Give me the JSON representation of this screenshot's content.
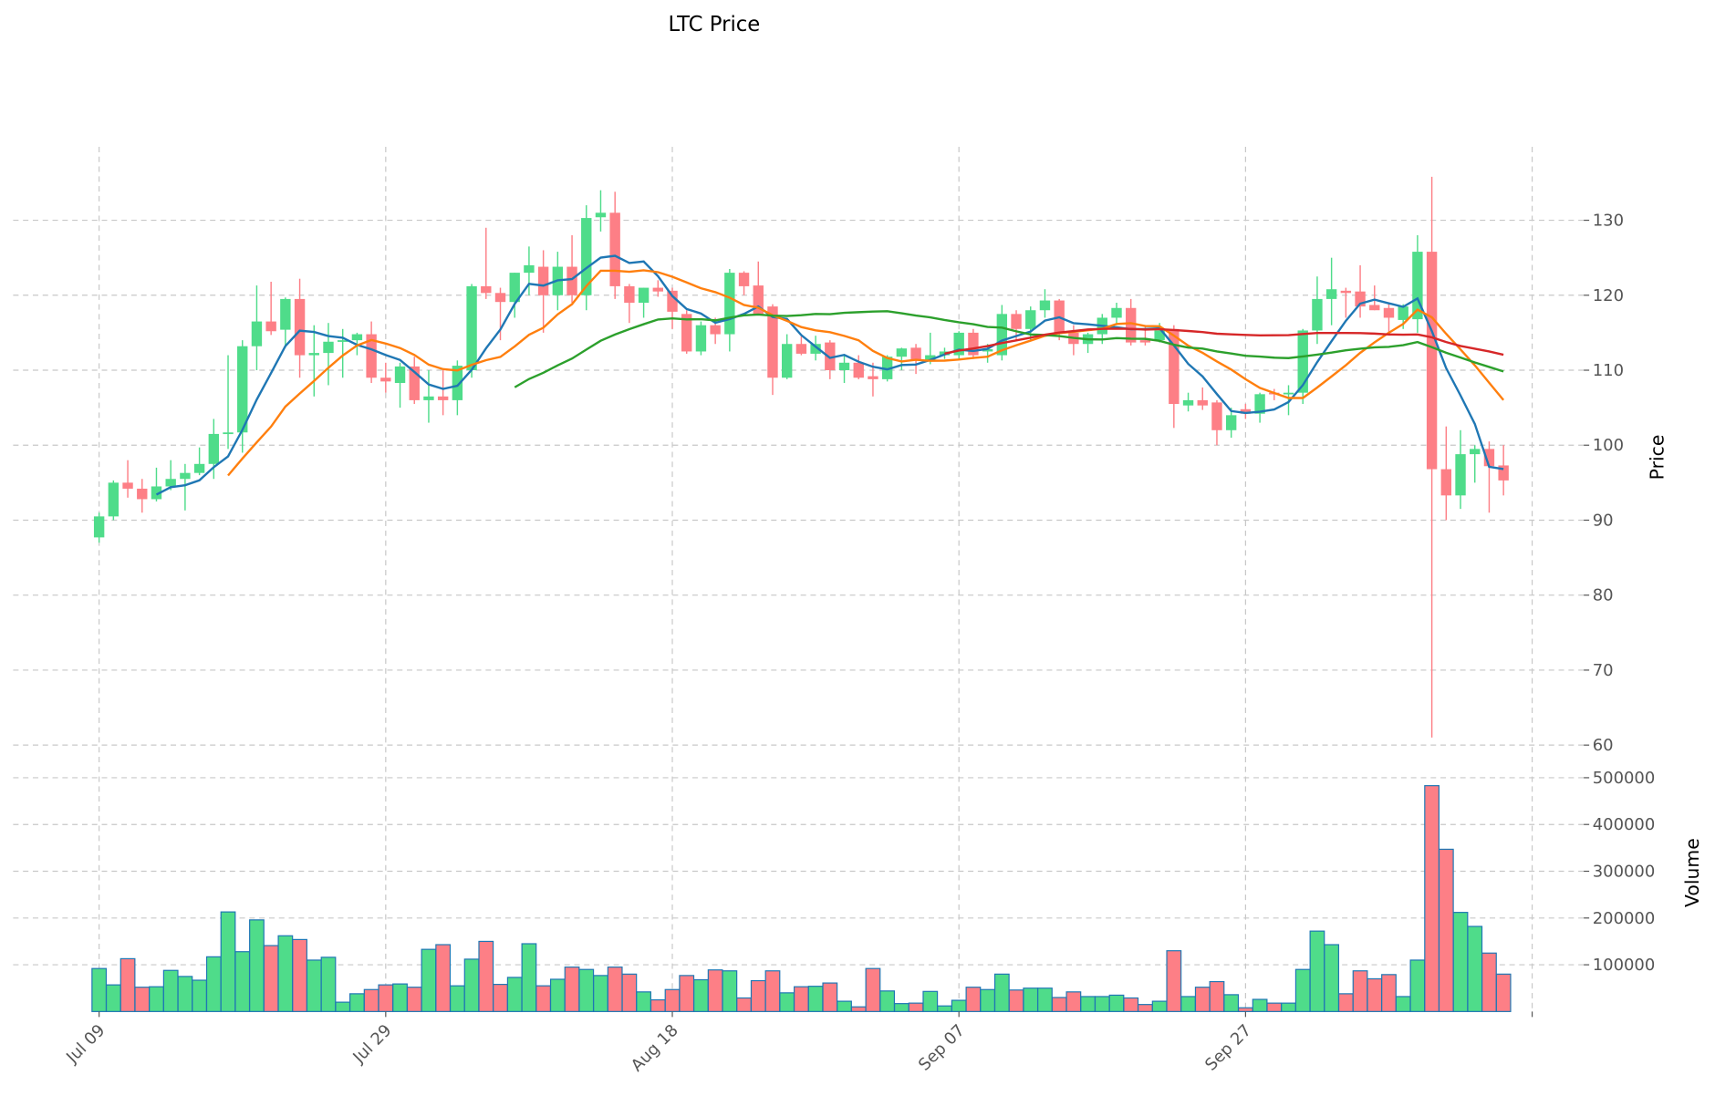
{
  "chart_data": {
    "type": "candlestick",
    "title": "LTC Price",
    "ylabel": "Price",
    "volume_label": "Volume",
    "ylim": [
      58,
      139.8
    ],
    "volume_ylim": [
      0,
      526000
    ],
    "grid": true,
    "price_ticks": [
      60,
      70,
      80,
      90,
      100,
      110,
      120,
      130
    ],
    "volume_ticks": [
      100000,
      200000,
      300000,
      400000,
      500000
    ],
    "x_ticks": [
      {
        "index": 0,
        "label": "Jul 09"
      },
      {
        "index": 20,
        "label": "Jul 29"
      },
      {
        "index": 40,
        "label": "Aug 18"
      },
      {
        "index": 60,
        "label": "Sep 07"
      },
      {
        "index": 80,
        "label": "Sep 27"
      },
      {
        "index": 100,
        "label": ""
      }
    ],
    "xlim": [
      -6,
      103.6
    ],
    "colors": {
      "up": "#4fdc8a",
      "down": "#fd7f86",
      "volume_edge": "#1f77b4"
    },
    "moving_averages": [
      {
        "period": 5,
        "color": "#1f77b4"
      },
      {
        "period": 10,
        "color": "#ff7f0e"
      },
      {
        "period": 30,
        "color": "#2ca02c"
      },
      {
        "period": 60,
        "color": "#d62728"
      }
    ],
    "ohlc": [
      [
        87.7,
        91,
        87,
        90.5
      ],
      [
        90.5,
        95.3,
        90,
        95
      ],
      [
        95,
        98,
        93,
        94.2
      ],
      [
        94.2,
        95.5,
        91,
        92.8
      ],
      [
        92.8,
        97,
        92.5,
        94.5
      ],
      [
        94.5,
        98,
        94,
        95.5
      ],
      [
        95.5,
        97.5,
        91.3,
        96.3
      ],
      [
        96.3,
        99.7,
        96,
        97.5
      ],
      [
        97.5,
        103.5,
        95.5,
        101.5
      ],
      [
        101.5,
        112,
        99.5,
        101.7
      ],
      [
        101.7,
        114,
        99,
        113.2
      ],
      [
        113.2,
        121.3,
        110,
        116.5
      ],
      [
        116.5,
        121.8,
        114.7,
        115.2
      ],
      [
        115.4,
        119.7,
        113,
        119.5
      ],
      [
        119.5,
        122.2,
        109,
        112
      ],
      [
        112,
        116,
        106.5,
        112.3
      ],
      [
        112.3,
        116.3,
        108,
        113.8
      ],
      [
        113.8,
        115.5,
        109,
        114
      ],
      [
        114,
        115,
        112,
        114.8
      ],
      [
        114.8,
        116.5,
        108.3,
        109
      ],
      [
        109,
        111,
        107,
        108.5
      ],
      [
        108.3,
        111,
        105,
        110.5
      ],
      [
        110.5,
        111.8,
        105.5,
        106
      ],
      [
        106,
        110,
        103,
        106.5
      ],
      [
        106.5,
        110,
        104,
        106
      ],
      [
        106,
        111.3,
        104,
        110.6
      ],
      [
        110,
        121.5,
        109,
        121.2
      ],
      [
        121.2,
        129,
        119.5,
        120.3
      ],
      [
        120.3,
        121,
        114,
        119.1
      ],
      [
        119.1,
        123,
        117,
        123
      ],
      [
        123,
        126.5,
        120,
        124
      ],
      [
        123.8,
        126,
        115,
        120
      ],
      [
        120,
        125.8,
        118,
        123.8
      ],
      [
        123.8,
        128,
        119,
        120
      ],
      [
        120,
        132,
        118,
        130.3
      ],
      [
        130.4,
        134,
        128.5,
        131
      ],
      [
        131,
        133.8,
        119.5,
        121.2
      ],
      [
        121.2,
        121.5,
        116.3,
        119
      ],
      [
        119,
        121,
        117,
        121
      ],
      [
        121,
        122,
        119.8,
        120.5
      ],
      [
        120.6,
        121,
        115.5,
        117.8
      ],
      [
        117.5,
        118,
        112.2,
        112.5
      ],
      [
        112.5,
        116.5,
        112,
        116
      ],
      [
        116,
        117,
        113.5,
        114.8
      ],
      [
        114.8,
        123.5,
        112.5,
        123
      ],
      [
        123,
        123.2,
        120,
        121.2
      ],
      [
        121.3,
        124.5,
        117.5,
        117.5
      ],
      [
        118.5,
        118.8,
        106.7,
        109
      ],
      [
        109,
        114.8,
        108.8,
        113.5
      ],
      [
        113.5,
        114.5,
        112,
        112.2
      ],
      [
        112.2,
        114.6,
        111.3,
        113.5
      ],
      [
        113.7,
        114,
        108.8,
        110
      ],
      [
        110,
        112,
        108.3,
        111
      ],
      [
        111,
        112,
        108.8,
        109
      ],
      [
        109.2,
        111,
        106.5,
        108.8
      ],
      [
        108.8,
        112,
        108.5,
        111.8
      ],
      [
        111.8,
        113,
        110,
        112.9
      ],
      [
        113,
        113.5,
        109.5,
        111.3
      ],
      [
        111.3,
        115,
        110.8,
        112
      ],
      [
        112,
        113,
        111.5,
        112.5
      ],
      [
        112,
        115.2,
        111.5,
        115
      ],
      [
        115,
        115.5,
        111.5,
        112
      ],
      [
        112.5,
        113.5,
        111,
        112.8
      ],
      [
        112,
        118.7,
        111.3,
        117.5
      ],
      [
        117.5,
        118,
        114,
        115.5
      ],
      [
        115.5,
        118.5,
        114,
        118
      ],
      [
        118,
        120.8,
        117,
        119.3
      ],
      [
        119.3,
        119.5,
        114,
        115
      ],
      [
        115,
        116,
        112,
        113.5
      ],
      [
        113.5,
        115,
        112.3,
        114.8
      ],
      [
        114.8,
        117.5,
        113.5,
        117
      ],
      [
        117,
        119,
        116,
        118.3
      ],
      [
        118.3,
        119.5,
        113.3,
        113.7
      ],
      [
        114,
        116,
        113.3,
        113.7
      ],
      [
        114,
        116.3,
        113.7,
        115.3
      ],
      [
        115.5,
        116,
        102.3,
        105.5
      ],
      [
        105.3,
        107,
        104.5,
        106
      ],
      [
        106,
        107.7,
        104.7,
        105.3
      ],
      [
        105.7,
        106,
        100,
        102
      ],
      [
        102,
        105,
        101,
        104
      ],
      [
        104.8,
        105.5,
        103.5,
        104.2
      ],
      [
        104.2,
        107,
        103,
        106.8
      ],
      [
        107,
        107.5,
        106,
        106.8
      ],
      [
        106.8,
        108,
        104,
        107
      ],
      [
        107,
        115.5,
        105.5,
        115.3
      ],
      [
        115.3,
        122.5,
        113.5,
        119.5
      ],
      [
        119.5,
        125,
        116,
        120.8
      ],
      [
        120.6,
        121,
        117,
        120.3
      ],
      [
        120.5,
        124,
        117,
        118.5
      ],
      [
        118.7,
        121.3,
        118,
        118
      ],
      [
        118.3,
        118.8,
        115,
        117
      ],
      [
        116.7,
        118.8,
        115.5,
        118.5
      ],
      [
        116.8,
        128,
        115,
        125.8
      ],
      [
        125.8,
        135.8,
        61,
        96.8
      ],
      [
        96.8,
        102.5,
        90,
        93.3
      ],
      [
        93.3,
        102,
        91.5,
        98.8
      ],
      [
        98.8,
        100,
        95,
        99.5
      ],
      [
        99.5,
        100.5,
        91,
        97.2
      ],
      [
        97.3,
        100,
        93.3,
        95.3
      ]
    ],
    "volume": [
      92000,
      57000,
      113000,
      52000,
      53000,
      88000,
      75000,
      67000,
      117000,
      213000,
      128000,
      196000,
      141000,
      162000,
      154000,
      110000,
      116000,
      20000,
      38000,
      47000,
      57000,
      59000,
      52000,
      133000,
      143000,
      55000,
      112000,
      150000,
      58000,
      73000,
      145000,
      55000,
      69000,
      95000,
      90000,
      77000,
      95000,
      80000,
      42000,
      25000,
      47000,
      77000,
      68000,
      89000,
      87000,
      29000,
      66000,
      87000,
      40000,
      53000,
      54000,
      61000,
      22000,
      10000,
      92000,
      44000,
      17000,
      18000,
      43000,
      12000,
      24000,
      52000,
      47000,
      80000,
      46000,
      50000,
      50000,
      30000,
      42000,
      32000,
      32000,
      35000,
      29000,
      15000,
      22000,
      130000,
      32000,
      52000,
      64000,
      36000,
      8000,
      26000,
      18000,
      18000,
      90000,
      172000,
      143000,
      38000,
      87000,
      70000,
      79000,
      32000,
      110000,
      483000,
      347000,
      212000,
      182000,
      125000,
      80000
    ]
  }
}
